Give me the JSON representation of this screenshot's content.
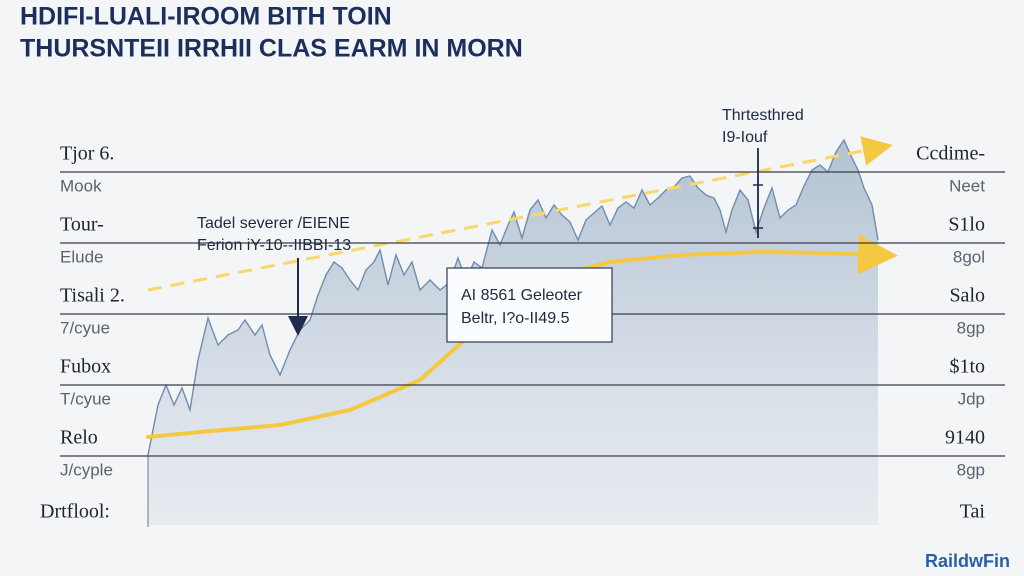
{
  "chart_data": {
    "type": "area",
    "title": "HDIFI-LUALI-IROOM BITH TOIN",
    "subtitle": "THURSNTEII IRRHII CLAS EARM IN MORN",
    "grid": true,
    "xlim": [
      0,
      730
    ],
    "ylim": [
      0,
      100
    ],
    "rows": [
      {
        "left": "Tjor 6.",
        "left_sub": "Mook",
        "right": "Ccdime-",
        "right_sub": "Neet"
      },
      {
        "left": "Tour-",
        "left_sub": "Elude",
        "right": "S1lo",
        "right_sub": "8gol"
      },
      {
        "left": "Tisali 2.",
        "left_sub": "7/cyue",
        "right": "Salo",
        "right_sub": "8gp"
      },
      {
        "left": "Fubox",
        "left_sub": "T/cyue",
        "right": "$1to",
        "right_sub": "Jdp"
      },
      {
        "left": "Relo",
        "left_sub": "J/cyple",
        "right": "9140",
        "right_sub": "8gp"
      }
    ],
    "footer_left": "Drtflool:",
    "footer_right": "Tai",
    "series": [
      {
        "kind": "area",
        "color": "#9fb3c8",
        "x": [
          0,
          10,
          18,
          26,
          34,
          42,
          50,
          60,
          70,
          80,
          90,
          97,
          107,
          114,
          122,
          132,
          142,
          152,
          162,
          170,
          178,
          186,
          194,
          202,
          210,
          218,
          226,
          232,
          240,
          248,
          256,
          264,
          272,
          282,
          292,
          302,
          310,
          318,
          326,
          334,
          344,
          352,
          360,
          366,
          374,
          382,
          390,
          398,
          406,
          414,
          422,
          430,
          438,
          446,
          454,
          462,
          470,
          478,
          486,
          494,
          502,
          510,
          518,
          526,
          534,
          542,
          550,
          558,
          566,
          572,
          578,
          584,
          592,
          600,
          608,
          616,
          624,
          632,
          640,
          648,
          656,
          664,
          672,
          680,
          688,
          696,
          704,
          710,
          716,
          724,
          730
        ],
        "values": [
          17.5,
          30,
          35,
          30,
          34.25,
          28.75,
          41.25,
          51.75,
          45,
          47.5,
          48.75,
          51.25,
          47.5,
          50,
          42.5,
          37.5,
          43.75,
          48.75,
          51.25,
          57.5,
          62.5,
          65.75,
          64.25,
          61.25,
          58.75,
          63.75,
          65.75,
          68.75,
          60,
          67.5,
          62.5,
          65.75,
          58.75,
          61.25,
          58.75,
          60.75,
          66.75,
          61.25,
          65.75,
          64.25,
          73.75,
          70,
          75,
          78.25,
          71.75,
          78.75,
          81.25,
          76.75,
          80,
          77.5,
          75.75,
          71.25,
          76.25,
          78,
          79.75,
          75,
          79.25,
          80.75,
          79.25,
          83.75,
          80,
          81.75,
          83.75,
          84.5,
          86.75,
          87.25,
          84.25,
          82.5,
          81.75,
          78.75,
          73.25,
          78.75,
          83.75,
          81.25,
          73.25,
          79.25,
          84.25,
          76.75,
          78.75,
          80,
          84.75,
          88.75,
          90,
          88.25,
          93.25,
          96.25,
          91.75,
          88.75,
          84.25,
          80,
          71.25
        ]
      },
      {
        "kind": "line",
        "color": "#f5c842",
        "x": [
          0,
          52,
          132,
          202,
          272,
          322,
          372,
          412,
          462,
          532,
          612,
          672,
          730
        ],
        "values": [
          22,
          23.25,
          25,
          28.75,
          36.25,
          47.5,
          56.25,
          62.5,
          65.75,
          67.5,
          68.25,
          68,
          67.5
        ]
      },
      {
        "kind": "dashed",
        "color": "#f7d868",
        "x": [
          0,
          730
        ],
        "values": [
          58.75,
          94.25
        ]
      }
    ],
    "annotations": [
      {
        "lines": [
          "Tadel severer /EIENE",
          "Ferion iY-10--IIBBI-13"
        ]
      },
      {
        "lines": [
          "AI 8561 Geleoter",
          "Beltr, I?o-II49.5"
        ]
      },
      {
        "lines": [
          "Thrtesthred",
          "I9-Iouf"
        ]
      }
    ],
    "brand": "RaildwFin"
  }
}
